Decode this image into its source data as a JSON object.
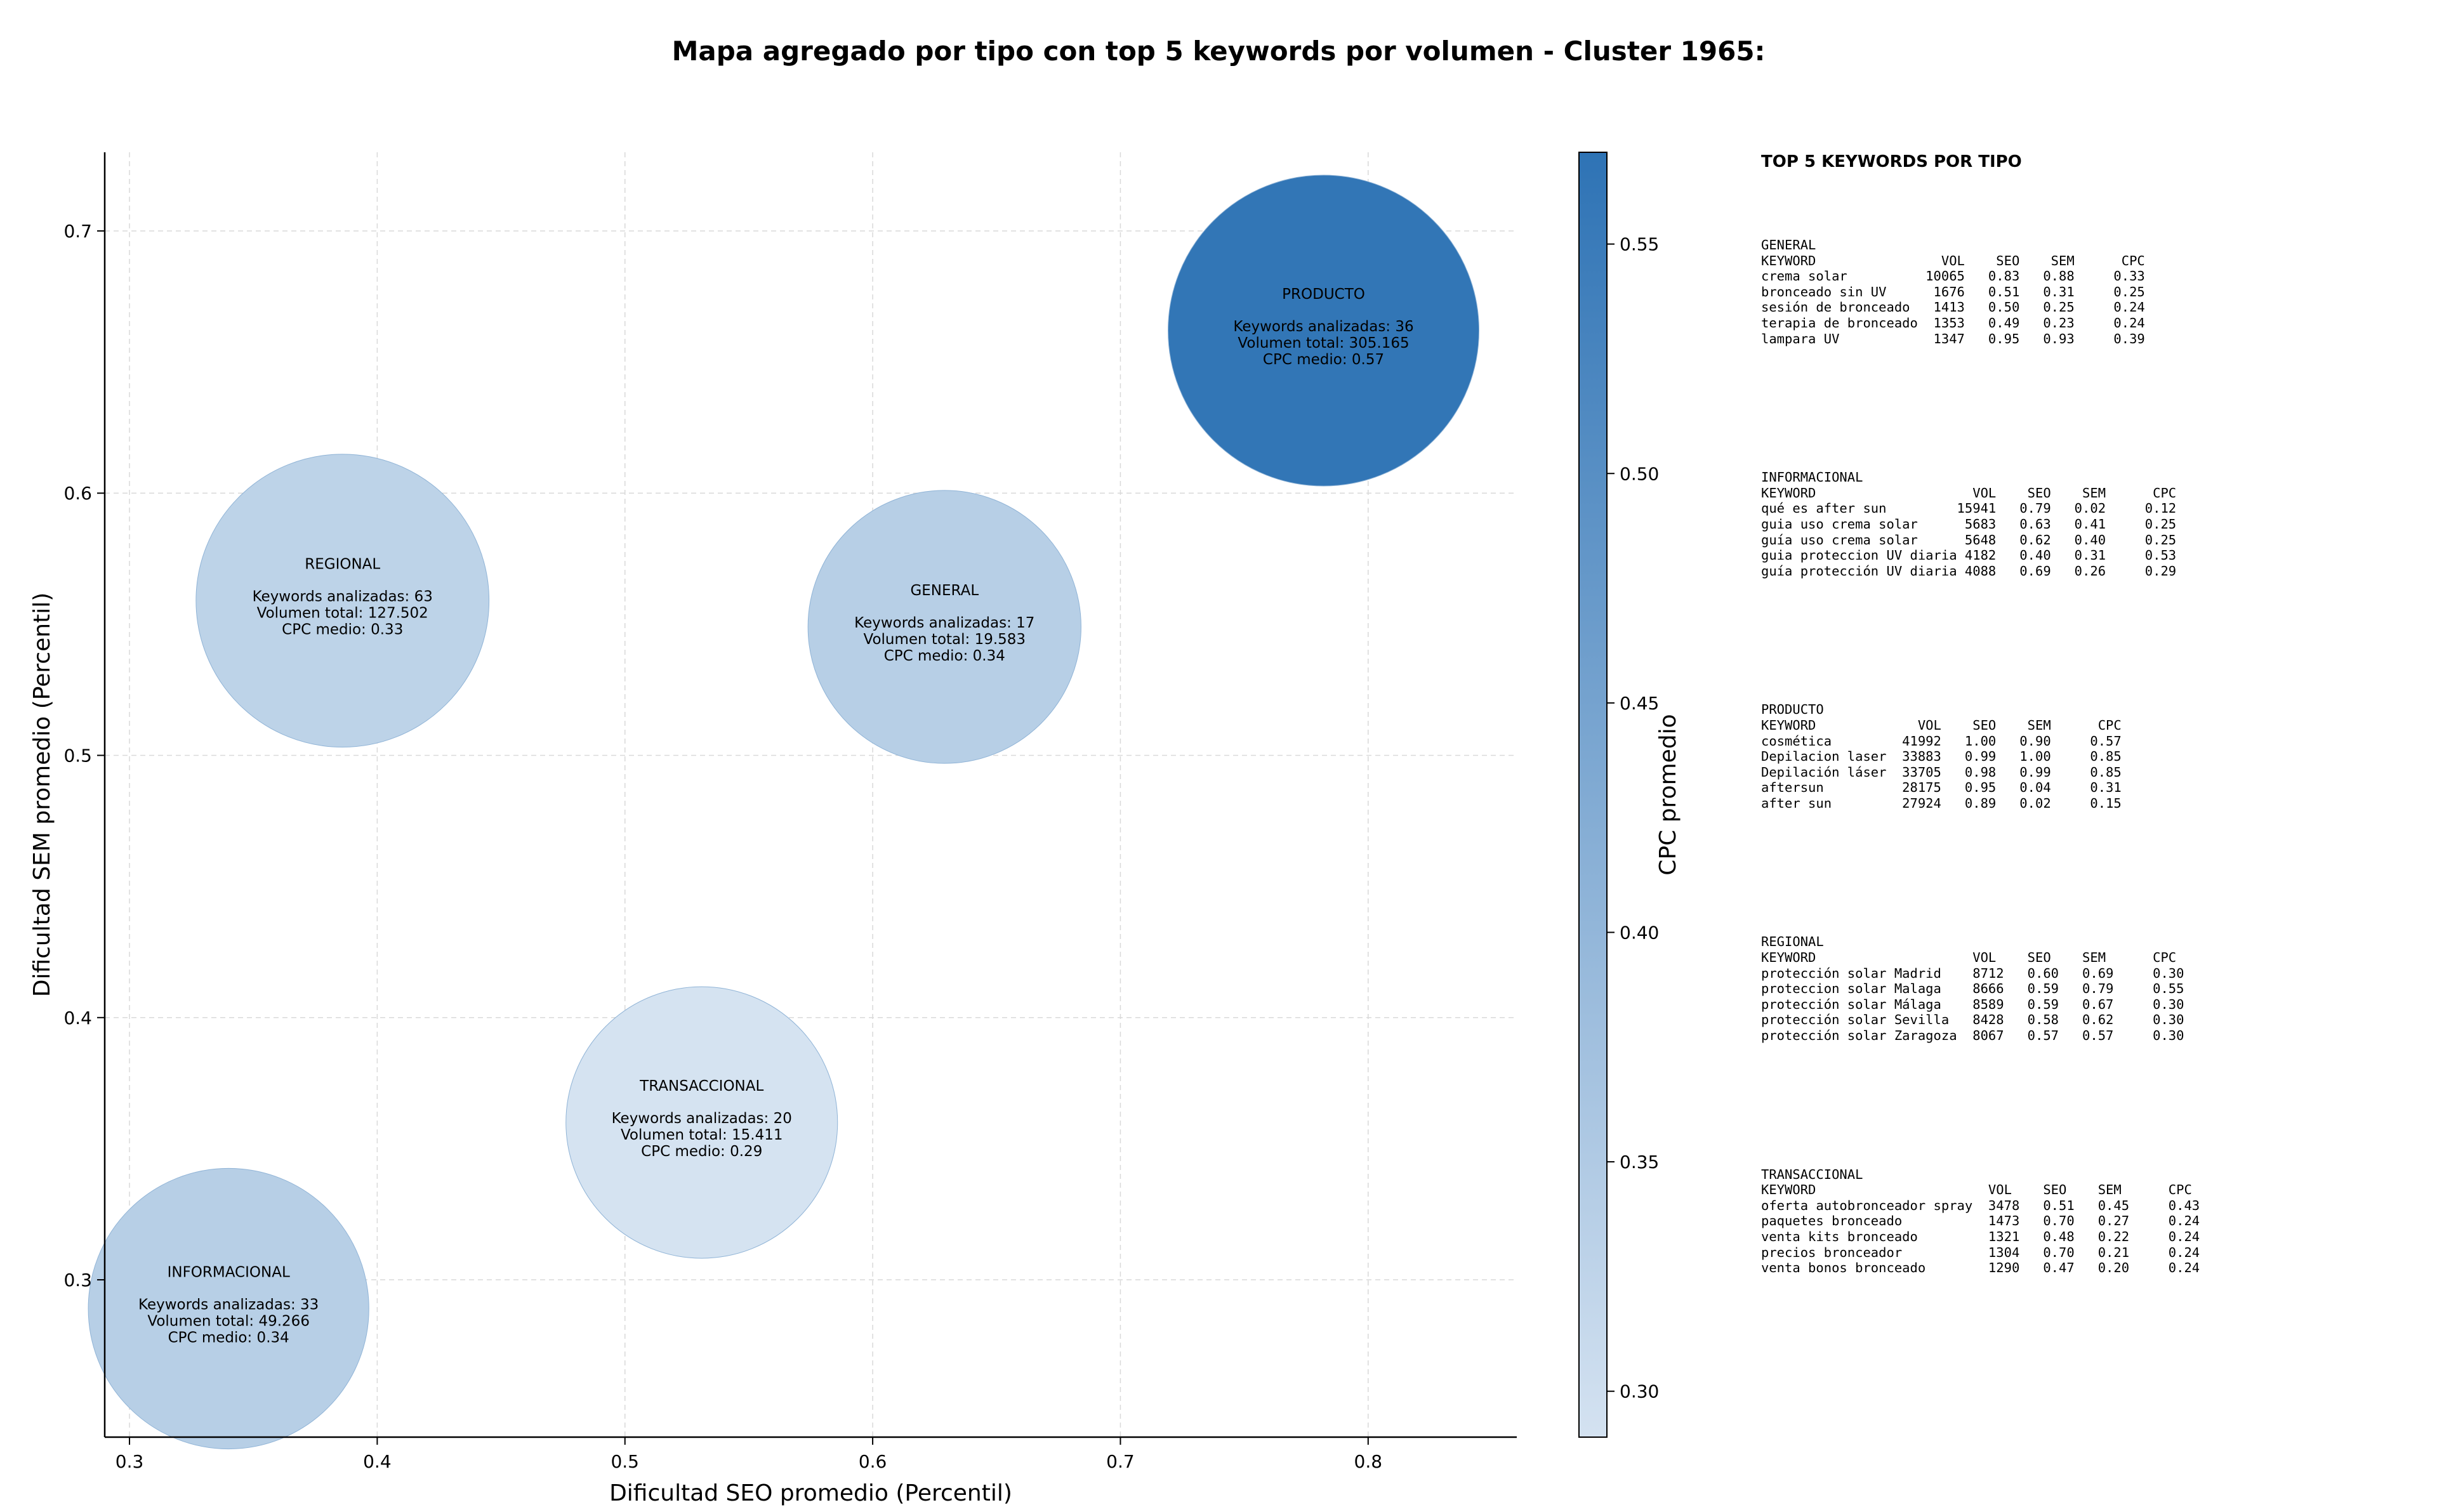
{
  "title": "Mapa agregado por tipo con top 5 keywords por volumen - Cluster 1965:",
  "chart_data": {
    "type": "scatter",
    "title": "Mapa agregado por tipo con top 5 keywords por volumen - Cluster 1965:",
    "xlabel": "Dificultad SEO promedio (Percentil)",
    "ylabel": "Dificultad SEM promedio (Percentil)",
    "xlim": [
      0.29,
      0.86
    ],
    "ylim": [
      0.24,
      0.73
    ],
    "xticks": [
      "0.3",
      "0.4",
      "0.5",
      "0.6",
      "0.7",
      "0.8"
    ],
    "yticks": [
      "0.3",
      "0.4",
      "0.5",
      "0.6",
      "0.7"
    ],
    "grid": true,
    "colorbar": {
      "label": "CPC promedio",
      "min": 0.29,
      "max": 0.57,
      "ticks": [
        "0.30",
        "0.35",
        "0.40",
        "0.45",
        "0.50",
        "0.55"
      ],
      "color_low": "#d4e2f1",
      "color_high": "#2e73b5"
    },
    "points": [
      {
        "name": "PRODUCTO",
        "x": 0.782,
        "y": 0.662,
        "keywords": 36,
        "volume": 305165,
        "cpc": 0.57,
        "lines": [
          "Keywords analizadas: 36",
          "Volumen total: 305.165",
          "CPC medio: 0.57"
        ]
      },
      {
        "name": "REGIONAL",
        "x": 0.386,
        "y": 0.559,
        "keywords": 63,
        "volume": 127502,
        "cpc": 0.33,
        "lines": [
          "Keywords analizadas: 63",
          "Volumen total: 127.502",
          "CPC medio: 0.33"
        ]
      },
      {
        "name": "GENERAL",
        "x": 0.629,
        "y": 0.549,
        "keywords": 17,
        "volume": 19583,
        "cpc": 0.34,
        "lines": [
          "Keywords analizadas: 17",
          "Volumen total: 19.583",
          "CPC medio: 0.34"
        ]
      },
      {
        "name": "TRANSACCIONAL",
        "x": 0.531,
        "y": 0.36,
        "keywords": 20,
        "volume": 15411,
        "cpc": 0.29,
        "lines": [
          "Keywords analizadas: 20",
          "Volumen total: 15.411",
          "CPC medio: 0.29"
        ]
      },
      {
        "name": "INFORMACIONAL",
        "x": 0.34,
        "y": 0.289,
        "keywords": 33,
        "volume": 49266,
        "cpc": 0.34,
        "lines": [
          "Keywords analizadas: 33",
          "Volumen total: 49.266",
          "CPC medio: 0.34"
        ]
      }
    ]
  },
  "top_keywords": {
    "title": "TOP 5 KEYWORDS POR TIPO",
    "groups": [
      {
        "name": "GENERAL",
        "header": "KEYWORD                VOL    SEO    SEM      CPC",
        "rows": [
          "crema solar          10065   0.83   0.88     0.33",
          "bronceado sin UV      1676   0.51   0.31     0.25",
          "sesión de bronceado   1413   0.50   0.25     0.24",
          "terapia de bronceado  1353   0.49   0.23     0.24",
          "lampara UV            1347   0.95   0.93     0.39"
        ]
      },
      {
        "name": "INFORMACIONAL",
        "header": "KEYWORD                    VOL    SEO    SEM      CPC",
        "rows": [
          "qué es after sun         15941   0.79   0.02     0.12",
          "guia uso crema solar      5683   0.63   0.41     0.25",
          "guía uso crema solar      5648   0.62   0.40     0.25",
          "guia proteccion UV diaria 4182   0.40   0.31     0.53",
          "guía protección UV diaria 4088   0.69   0.26     0.29"
        ]
      },
      {
        "name": "PRODUCTO",
        "header": "KEYWORD             VOL    SEO    SEM      CPC",
        "rows": [
          "cosmética         41992   1.00   0.90     0.57",
          "Depilacion laser  33883   0.99   1.00     0.85",
          "Depilación láser  33705   0.98   0.99     0.85",
          "aftersun          28175   0.95   0.04     0.31",
          "after sun         27924   0.89   0.02     0.15"
        ]
      },
      {
        "name": "REGIONAL",
        "header": "KEYWORD                    VOL    SEO    SEM      CPC",
        "rows": [
          "protección solar Madrid    8712   0.60   0.69     0.30",
          "proteccion solar Malaga    8666   0.59   0.79     0.55",
          "protección solar Málaga    8589   0.59   0.67     0.30",
          "protección solar Sevilla   8428   0.58   0.62     0.30",
          "protección solar Zaragoza  8067   0.57   0.57     0.30"
        ]
      },
      {
        "name": "TRANSACCIONAL",
        "header": "KEYWORD                      VOL    SEO    SEM      CPC",
        "rows": [
          "oferta autobronceador spray  3478   0.51   0.45     0.43",
          "paquetes bronceado           1473   0.70   0.27     0.24",
          "venta kits bronceado         1321   0.48   0.22     0.24",
          "precios bronceador           1304   0.70   0.21     0.24",
          "venta bonos bronceado        1290   0.47   0.20     0.24"
        ]
      }
    ]
  }
}
